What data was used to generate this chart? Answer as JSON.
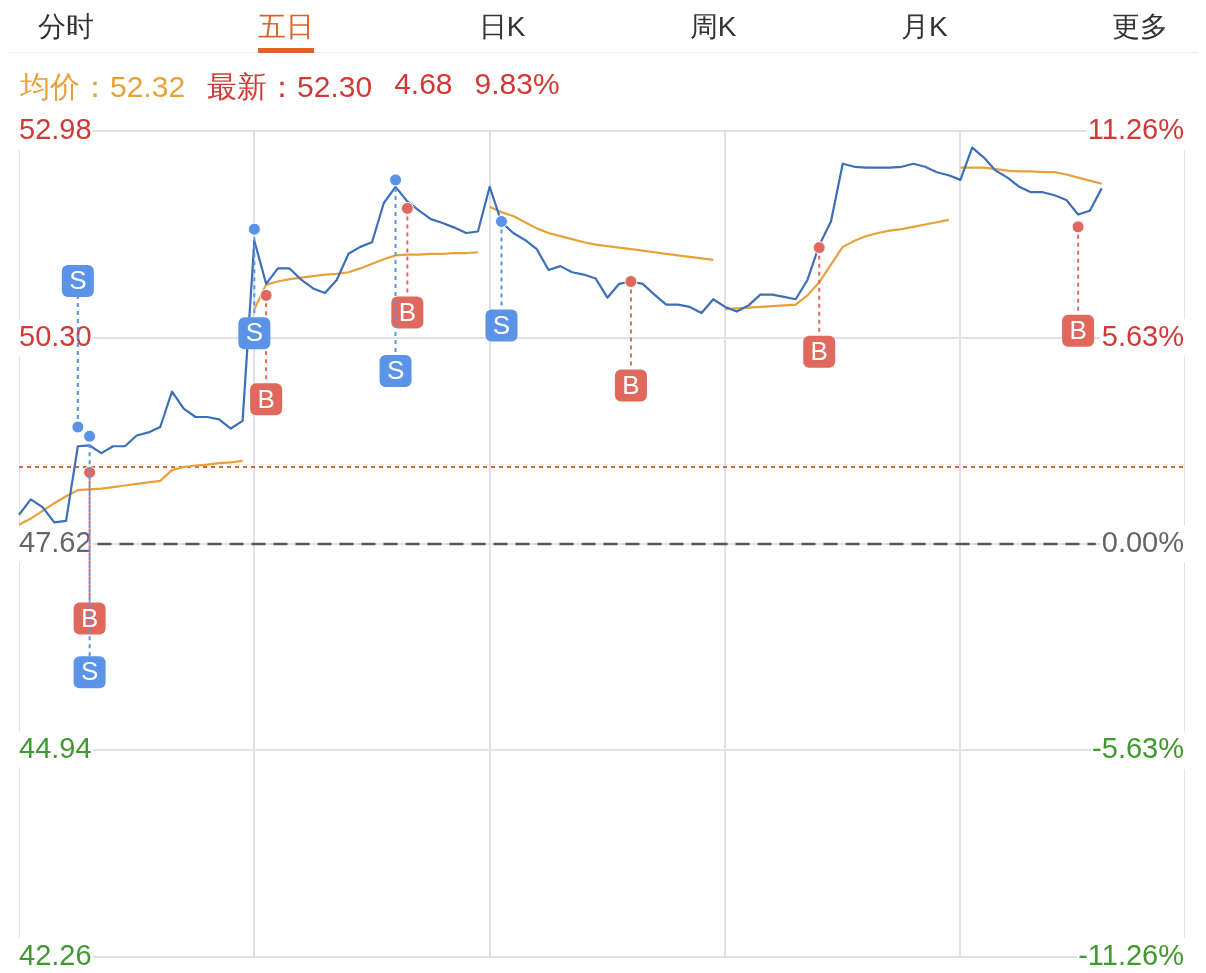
{
  "chart_data": {
    "type": "line",
    "annotations": [
      "分时",
      "五日",
      "日K",
      "周K",
      "月K",
      "更多",
      "均价：52.32",
      "最新：52.30",
      "4.68",
      "9.83%"
    ],
    "categories": [
      null,
      null,
      null,
      null,
      null,
      null,
      null,
      null,
      null,
      null,
      null,
      null,
      null,
      null,
      null,
      null,
      null,
      null,
      null,
      null,
      null,
      null,
      null,
      null,
      null,
      null,
      null,
      null,
      null,
      null,
      null,
      null,
      null,
      null,
      null,
      null,
      null,
      null,
      null,
      null,
      null,
      null,
      null,
      null,
      null,
      null,
      null,
      null,
      null,
      null,
      null,
      null,
      null,
      null,
      null,
      null,
      null,
      null,
      null,
      null,
      null,
      null,
      null,
      null,
      null,
      null,
      null,
      null,
      null,
      null,
      null,
      null,
      null,
      null,
      null,
      null,
      null,
      null,
      null,
      null,
      null,
      null,
      null,
      null,
      null,
      null,
      null,
      null,
      null,
      null,
      null,
      null,
      null,
      null,
      null,
      null,
      null,
      null,
      null,
      null
    ],
    "ylim": [
      42.26,
      52.98
    ],
    "yticks": [
      {
        "value": 42.26,
        "label": "42.26"
      },
      {
        "value": 44.94,
        "label": "44.94"
      },
      {
        "value": 47.62,
        "label": "47.62"
      },
      {
        "value": 50.3,
        "label": "50.30"
      },
      {
        "value": 52.98,
        "label": "52.98"
      }
    ],
    "y2lim": [
      -11.26,
      11.26
    ],
    "y2ticks": [
      {
        "value": -11.26,
        "label": "-11.26%"
      },
      {
        "value": -5.63,
        "label": "-5.63%"
      },
      {
        "value": 0,
        "label": "0.00%"
      },
      {
        "value": 5.63,
        "label": "5.63%"
      },
      {
        "value": 11.26,
        "label": "11.26%"
      }
    ],
    "grid": true,
    "legend": false,
    "ref_lines": [
      {
        "axis": "y",
        "value": 47.62,
        "color": "#555555",
        "line_style": "dashed"
      },
      {
        "axis": "y",
        "value": 48.62,
        "color": "#d9662a",
        "line_style": "dotted"
      }
    ],
    "series": [
      {
        "color": "#3d6fb8",
        "values": [
          48.0,
          48.2,
          48.1,
          47.9,
          47.92,
          48.89,
          48.9,
          48.8,
          48.89,
          48.89,
          49.03,
          49.07,
          49.14,
          49.6,
          49.38,
          49.27,
          49.27,
          49.24,
          49.12,
          49.22,
          51.56,
          51.0,
          51.2,
          51.2,
          51.05,
          50.94,
          50.88,
          51.05,
          51.39,
          51.48,
          51.54,
          52.05,
          52.26,
          52.07,
          51.95,
          51.84,
          51.79,
          51.73,
          51.66,
          51.68,
          52.26,
          51.8,
          51.66,
          51.57,
          51.45,
          51.18,
          51.23,
          51.15,
          51.12,
          51.07,
          50.82,
          51.0,
          51.03,
          51.0,
          50.86,
          50.73,
          50.73,
          50.7,
          50.62,
          50.8,
          50.7,
          50.64,
          50.72,
          50.86,
          50.86,
          50.83,
          50.8,
          51.05,
          51.5,
          51.81,
          52.56,
          52.52,
          52.51,
          52.51,
          52.51,
          52.52,
          52.56,
          52.52,
          52.45,
          52.41,
          52.35,
          52.77,
          52.64,
          52.47,
          52.38,
          52.26,
          52.19,
          52.19,
          52.15,
          52.09,
          51.9,
          51.95,
          52.24,
          null,
          null,
          null,
          null,
          null,
          null,
          null
        ]
      },
      {
        "color": "#e8a13a",
        "values": [
          47.87,
          47.95,
          48.05,
          48.15,
          48.24,
          48.32,
          48.33,
          48.34,
          48.36,
          48.38,
          48.4,
          48.42,
          48.44,
          48.58,
          48.62,
          48.64,
          48.65,
          48.67,
          48.68,
          48.7,
          null,
          null,
          null,
          null,
          null,
          null,
          null,
          null,
          null,
          null,
          null,
          null,
          null,
          null,
          null,
          null,
          null,
          null,
          null,
          null,
          null,
          null,
          null,
          null,
          null,
          null,
          null,
          null,
          null,
          null,
          null,
          null,
          null,
          null,
          null,
          null,
          null,
          null,
          null,
          null,
          null,
          null,
          null,
          null,
          null,
          null,
          null,
          null,
          null,
          null,
          null,
          null,
          null,
          null,
          null,
          null,
          null,
          null,
          null,
          null,
          null,
          null,
          null,
          null,
          null,
          null,
          null,
          null,
          null,
          null,
          null,
          null,
          null,
          null,
          null,
          null,
          null,
          null,
          null,
          null
        ]
      },
      {
        "color": "#e8a13a",
        "values": [
          null,
          null,
          null,
          null,
          null,
          null,
          null,
          null,
          null,
          null,
          null,
          null,
          null,
          null,
          null,
          null,
          null,
          null,
          null,
          null,
          50.67,
          50.99,
          51.03,
          51.06,
          51.08,
          51.1,
          51.12,
          51.13,
          51.15,
          51.2,
          51.26,
          51.32,
          51.37,
          51.38,
          51.38,
          51.39,
          51.39,
          51.4,
          51.4,
          51.41,
          null,
          null,
          null,
          null,
          null,
          null,
          null,
          null,
          null,
          null,
          null,
          null,
          null,
          null,
          null,
          null,
          null,
          null,
          null,
          null,
          null,
          null,
          null,
          null,
          null,
          null,
          null,
          null,
          null,
          null,
          null,
          null,
          null,
          null,
          null,
          null,
          null,
          null,
          null,
          null,
          null,
          null,
          null,
          null,
          null,
          null,
          null,
          null,
          null,
          null,
          null,
          null,
          null,
          null,
          null,
          null,
          null,
          null,
          null,
          null
        ]
      },
      {
        "color": "#e8a13a",
        "values": [
          null,
          null,
          null,
          null,
          null,
          null,
          null,
          null,
          null,
          null,
          null,
          null,
          null,
          null,
          null,
          null,
          null,
          null,
          null,
          null,
          null,
          null,
          null,
          null,
          null,
          null,
          null,
          null,
          null,
          null,
          null,
          null,
          null,
          null,
          null,
          null,
          null,
          null,
          null,
          null,
          52.0,
          51.93,
          51.88,
          51.8,
          51.72,
          51.66,
          51.62,
          51.58,
          51.54,
          51.51,
          51.49,
          51.47,
          51.45,
          51.43,
          51.41,
          51.39,
          51.37,
          51.35,
          51.33,
          51.31,
          null,
          null,
          null,
          null,
          null,
          null,
          null,
          null,
          null,
          null,
          null,
          null,
          null,
          null,
          null,
          null,
          null,
          null,
          null,
          null,
          null,
          null,
          null,
          null,
          null,
          null,
          null,
          null,
          null,
          null,
          null,
          null,
          null,
          null,
          null,
          null,
          null,
          null,
          null,
          null
        ]
      },
      {
        "color": "#e8a13a",
        "values": [
          null,
          null,
          null,
          null,
          null,
          null,
          null,
          null,
          null,
          null,
          null,
          null,
          null,
          null,
          null,
          null,
          null,
          null,
          null,
          null,
          null,
          null,
          null,
          null,
          null,
          null,
          null,
          null,
          null,
          null,
          null,
          null,
          null,
          null,
          null,
          null,
          null,
          null,
          null,
          null,
          null,
          null,
          null,
          null,
          null,
          null,
          null,
          null,
          null,
          null,
          null,
          null,
          null,
          null,
          null,
          null,
          null,
          null,
          null,
          null,
          50.67,
          50.68,
          50.69,
          50.7,
          50.71,
          50.72,
          50.73,
          50.85,
          51.02,
          51.25,
          51.48,
          51.56,
          51.62,
          51.66,
          51.69,
          51.71,
          51.74,
          51.77,
          51.8,
          51.83,
          null,
          null,
          null,
          null,
          null,
          null,
          null,
          null,
          null,
          null,
          null,
          null,
          null,
          null,
          null,
          null,
          null,
          null,
          null,
          null
        ]
      },
      {
        "color": "#e8a13a",
        "values": [
          null,
          null,
          null,
          null,
          null,
          null,
          null,
          null,
          null,
          null,
          null,
          null,
          null,
          null,
          null,
          null,
          null,
          null,
          null,
          null,
          null,
          null,
          null,
          null,
          null,
          null,
          null,
          null,
          null,
          null,
          null,
          null,
          null,
          null,
          null,
          null,
          null,
          null,
          null,
          null,
          null,
          null,
          null,
          null,
          null,
          null,
          null,
          null,
          null,
          null,
          null,
          null,
          null,
          null,
          null,
          null,
          null,
          null,
          null,
          null,
          null,
          null,
          null,
          null,
          null,
          null,
          null,
          null,
          null,
          null,
          null,
          null,
          null,
          null,
          null,
          null,
          null,
          null,
          null,
          null,
          52.51,
          52.51,
          52.51,
          52.49,
          52.47,
          52.46,
          52.46,
          52.45,
          52.45,
          52.42,
          52.38,
          52.34,
          52.3,
          null,
          null,
          null,
          null,
          null,
          null,
          null
        ]
      },
      {
        "type": "scatter",
        "name": "B",
        "color": "#e0685c",
        "marker": "circle",
        "values": [
          null,
          null,
          null,
          null,
          null,
          null,
          48.55,
          null,
          null,
          null,
          null,
          null,
          null,
          null,
          null,
          null,
          null,
          null,
          null,
          null,
          null,
          50.85,
          null,
          null,
          null,
          null,
          null,
          null,
          null,
          null,
          null,
          null,
          null,
          51.98,
          null,
          null,
          null,
          null,
          null,
          null,
          null,
          null,
          null,
          null,
          null,
          null,
          null,
          null,
          null,
          null,
          null,
          null,
          51.03,
          null,
          null,
          null,
          null,
          null,
          null,
          null,
          null,
          null,
          null,
          null,
          null,
          null,
          null,
          null,
          51.47,
          null,
          null,
          null,
          null,
          null,
          null,
          null,
          null,
          null,
          null,
          null,
          null,
          null,
          null,
          null,
          null,
          null,
          null,
          null,
          null,
          null,
          51.74,
          null,
          null,
          null,
          null,
          null,
          null,
          null,
          null,
          null
        ]
      },
      {
        "type": "scatter",
        "name": "S",
        "color": "#5b93e8",
        "marker": "circle",
        "values": [
          null,
          null,
          null,
          null,
          null,
          49.14,
          49.02,
          null,
          null,
          null,
          null,
          null,
          null,
          null,
          null,
          null,
          null,
          null,
          null,
          null,
          51.71,
          null,
          null,
          null,
          null,
          null,
          null,
          null,
          null,
          null,
          null,
          null,
          52.35,
          null,
          null,
          null,
          null,
          null,
          null,
          null,
          null,
          51.81,
          null,
          null,
          null,
          null,
          null,
          null,
          null,
          null,
          null,
          null,
          null,
          null,
          null,
          null,
          null,
          null,
          null,
          null,
          null,
          null,
          null,
          null,
          null,
          null,
          null,
          null,
          null,
          null,
          null,
          null,
          null,
          null,
          null,
          null,
          null,
          null,
          null,
          null,
          null,
          null,
          null,
          null,
          null,
          null,
          null,
          null,
          null,
          null,
          null,
          null,
          null,
          null,
          null,
          null,
          null,
          null,
          null,
          null
        ]
      }
    ]
  }
}
